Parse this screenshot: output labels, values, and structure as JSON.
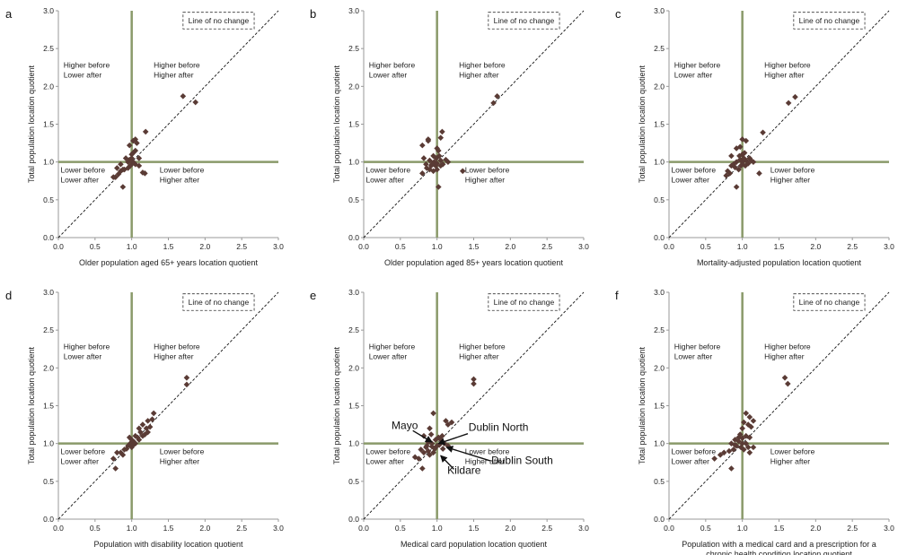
{
  "colors": {
    "marker": "#5a3b35",
    "reference_line": "#8a9a6a",
    "axis": "#999999",
    "diagonal": "#111111"
  },
  "chart_data": [
    {
      "type": "scatter",
      "panel": "a",
      "xlabel": "Older population aged 65+ years location quotient",
      "ylabel": "Total population location quotient",
      "xlim": [
        0,
        3
      ],
      "ylim": [
        0,
        3
      ],
      "xticks": [
        "0.0",
        "0.5",
        "1.0",
        "1.5",
        "2.0",
        "2.5",
        "3.0"
      ],
      "yticks": [
        "0.0",
        "0.5",
        "1.0",
        "1.5",
        "2.0",
        "2.5",
        "3.0"
      ],
      "legend": "Line of no change",
      "quadrant_labels": {
        "top_left": [
          "Higher before",
          "Lower after"
        ],
        "top_right": [
          "Higher before",
          "Higher after"
        ],
        "bottom_left": [
          "Lower before",
          "Lower after"
        ],
        "bottom_right": [
          "Lower before",
          "Higher after"
        ]
      },
      "annotations": [],
      "points": [
        [
          1.7,
          1.87
        ],
        [
          1.87,
          1.79
        ],
        [
          1.05,
          1.3
        ],
        [
          1.02,
          1.28
        ],
        [
          1.07,
          1.25
        ],
        [
          1.19,
          1.4
        ],
        [
          0.97,
          1.22
        ],
        [
          1.05,
          1.15
        ],
        [
          1.02,
          1.12
        ],
        [
          1.0,
          1.1
        ],
        [
          0.92,
          1.05
        ],
        [
          0.97,
          1.03
        ],
        [
          1.1,
          1.05
        ],
        [
          0.95,
          1.0
        ],
        [
          1.0,
          0.97
        ],
        [
          1.05,
          0.97
        ],
        [
          1.1,
          0.95
        ],
        [
          0.85,
          0.97
        ],
        [
          0.8,
          0.92
        ],
        [
          0.85,
          0.88
        ],
        [
          0.9,
          0.9
        ],
        [
          0.95,
          0.92
        ],
        [
          0.78,
          0.8
        ],
        [
          0.82,
          0.84
        ],
        [
          0.75,
          0.8
        ],
        [
          1.18,
          0.85
        ],
        [
          1.15,
          0.86
        ],
        [
          0.88,
          0.67
        ],
        [
          0.88,
          0.9
        ],
        [
          1.02,
          1.0
        ],
        [
          0.98,
          0.95
        ],
        [
          1.0,
          1.05
        ]
      ]
    },
    {
      "type": "scatter",
      "panel": "b",
      "xlabel": "Older population aged 85+ years location quotient",
      "ylabel": "Total population location quotient",
      "xlim": [
        0,
        3
      ],
      "ylim": [
        0,
        3
      ],
      "xticks": [
        "0.0",
        "0.5",
        "1.0",
        "1.5",
        "2.0",
        "2.5",
        "3.0"
      ],
      "yticks": [
        "0.0",
        "0.5",
        "1.0",
        "1.5",
        "2.0",
        "2.5",
        "3.0"
      ],
      "legend": "Line of no change",
      "quadrant_labels": {
        "top_left": [
          "Higher before",
          "Lower after"
        ],
        "top_right": [
          "Higher before",
          "Higher after"
        ],
        "bottom_left": [
          "Lower before",
          "Lower after"
        ],
        "bottom_right": [
          "Lower before",
          "Higher after"
        ]
      },
      "annotations": [],
      "points": [
        [
          1.82,
          1.87
        ],
        [
          1.77,
          1.78
        ],
        [
          1.07,
          1.4
        ],
        [
          1.05,
          1.32
        ],
        [
          0.88,
          1.3
        ],
        [
          0.88,
          1.28
        ],
        [
          0.8,
          1.22
        ],
        [
          1.0,
          1.18
        ],
        [
          1.02,
          1.15
        ],
        [
          0.95,
          1.08
        ],
        [
          0.82,
          1.05
        ],
        [
          0.9,
          1.02
        ],
        [
          1.05,
          1.02
        ],
        [
          1.12,
          1.03
        ],
        [
          0.85,
          0.97
        ],
        [
          0.92,
          0.95
        ],
        [
          0.98,
          0.95
        ],
        [
          1.05,
          0.95
        ],
        [
          0.9,
          0.9
        ],
        [
          0.95,
          0.88
        ],
        [
          1.0,
          0.9
        ],
        [
          0.8,
          0.85
        ],
        [
          1.35,
          0.88
        ],
        [
          1.02,
          0.67
        ],
        [
          1.15,
          1.0
        ],
        [
          1.08,
          0.97
        ],
        [
          0.96,
          1.0
        ],
        [
          1.0,
          0.98
        ],
        [
          0.93,
          0.97
        ],
        [
          0.99,
          1.05
        ],
        [
          1.03,
          1.08
        ],
        [
          0.86,
          0.92
        ]
      ]
    },
    {
      "type": "scatter",
      "panel": "c",
      "xlabel": "Mortality-adjusted population location quotient",
      "ylabel": "Total population location quotient",
      "xlim": [
        0,
        3
      ],
      "ylim": [
        0,
        3
      ],
      "xticks": [
        "0.0",
        "0.5",
        "1.0",
        "1.5",
        "2.0",
        "2.5",
        "3.0"
      ],
      "yticks": [
        "0.0",
        "0.5",
        "1.0",
        "1.5",
        "2.0",
        "2.5",
        "3.0"
      ],
      "legend": "Line of no change",
      "quadrant_labels": {
        "top_left": [
          "Higher before",
          "Lower after"
        ],
        "top_right": [
          "Higher before",
          "Higher after"
        ],
        "bottom_left": [
          "Lower before",
          "Lower after"
        ],
        "bottom_right": [
          "Lower before",
          "Higher after"
        ]
      },
      "annotations": [],
      "points": [
        [
          1.72,
          1.86
        ],
        [
          1.63,
          1.78
        ],
        [
          1.28,
          1.39
        ],
        [
          1.0,
          1.3
        ],
        [
          1.05,
          1.28
        ],
        [
          0.97,
          1.2
        ],
        [
          0.92,
          1.18
        ],
        [
          1.0,
          1.1
        ],
        [
          1.03,
          1.12
        ],
        [
          0.85,
          1.08
        ],
        [
          0.97,
          1.03
        ],
        [
          1.05,
          1.02
        ],
        [
          1.1,
          1.05
        ],
        [
          0.92,
          1.0
        ],
        [
          1.0,
          0.97
        ],
        [
          1.08,
          0.98
        ],
        [
          0.85,
          0.95
        ],
        [
          0.9,
          0.93
        ],
        [
          0.95,
          0.9
        ],
        [
          0.8,
          0.88
        ],
        [
          0.78,
          0.82
        ],
        [
          0.83,
          0.85
        ],
        [
          1.23,
          0.85
        ],
        [
          0.92,
          0.67
        ],
        [
          1.0,
          1.0
        ],
        [
          1.02,
          1.05
        ],
        [
          0.98,
          0.95
        ],
        [
          1.12,
          1.02
        ],
        [
          1.15,
          1.0
        ],
        [
          0.96,
          1.08
        ],
        [
          1.04,
          0.95
        ],
        [
          0.88,
          0.97
        ]
      ]
    },
    {
      "type": "scatter",
      "panel": "d",
      "xlabel": "Population with disability location quotient",
      "ylabel": "Total population location quotient",
      "xlim": [
        0,
        3
      ],
      "ylim": [
        0,
        3
      ],
      "xticks": [
        "0.0",
        "0.5",
        "1.0",
        "1.5",
        "2.0",
        "2.5",
        "3.0"
      ],
      "yticks": [
        "0.0",
        "0.5",
        "1.0",
        "1.5",
        "2.0",
        "2.5",
        "3.0"
      ],
      "legend": "Line of no change",
      "quadrant_labels": {
        "top_left": [
          "Higher before",
          "Lower after"
        ],
        "top_right": [
          "Higher before",
          "Higher after"
        ],
        "bottom_left": [
          "Lower before",
          "Lower after"
        ],
        "bottom_right": [
          "Lower before",
          "Higher after"
        ]
      },
      "annotations": [],
      "points": [
        [
          1.75,
          1.87
        ],
        [
          1.75,
          1.78
        ],
        [
          1.3,
          1.4
        ],
        [
          1.28,
          1.32
        ],
        [
          1.22,
          1.3
        ],
        [
          1.15,
          1.25
        ],
        [
          1.1,
          1.2
        ],
        [
          1.25,
          1.22
        ],
        [
          1.12,
          1.15
        ],
        [
          1.18,
          1.12
        ],
        [
          1.05,
          1.1
        ],
        [
          1.08,
          1.08
        ],
        [
          1.22,
          1.15
        ],
        [
          1.0,
          1.05
        ],
        [
          1.03,
          1.02
        ],
        [
          0.98,
          1.0
        ],
        [
          1.1,
          1.05
        ],
        [
          0.95,
          0.97
        ],
        [
          1.0,
          0.95
        ],
        [
          0.9,
          0.92
        ],
        [
          0.85,
          0.88
        ],
        [
          0.88,
          0.85
        ],
        [
          0.8,
          0.88
        ],
        [
          0.75,
          0.8
        ],
        [
          0.78,
          0.67
        ],
        [
          1.05,
          1.0
        ],
        [
          1.0,
          1.02
        ],
        [
          1.15,
          1.1
        ],
        [
          1.2,
          1.2
        ],
        [
          0.93,
          0.93
        ],
        [
          1.02,
          0.98
        ],
        [
          0.97,
          1.08
        ]
      ]
    },
    {
      "type": "scatter",
      "panel": "e",
      "xlabel": "Medical card population location quotient",
      "ylabel": "Total population location quotient",
      "xlim": [
        0,
        3
      ],
      "ylim": [
        0,
        3
      ],
      "xticks": [
        "0.0",
        "0.5",
        "1.0",
        "1.5",
        "2.0",
        "2.5",
        "3.0"
      ],
      "yticks": [
        "0.0",
        "0.5",
        "1.0",
        "1.5",
        "2.0",
        "2.5",
        "3.0"
      ],
      "legend": "Line of no change",
      "quadrant_labels": {
        "top_left": [
          "Higher before",
          "Lower after"
        ],
        "top_right": [
          "Higher before",
          "Higher after"
        ],
        "bottom_left": [
          "Lower before",
          "Lower after"
        ],
        "bottom_right": [
          "Lower before",
          "Higher after"
        ]
      },
      "annotations": [
        {
          "text": "Mayo",
          "label_at": [
            0.38,
            1.19
          ],
          "arrow_from": [
            0.67,
            1.17
          ],
          "arrow_to": [
            0.93,
            1.02
          ],
          "anchor": "start"
        },
        {
          "text": "Dublin North",
          "label_at": [
            1.43,
            1.17
          ],
          "arrow_from": [
            1.42,
            1.13
          ],
          "arrow_to": [
            1.02,
            1.0
          ],
          "anchor": "start"
        },
        {
          "text": "Dublin South",
          "label_at": [
            1.74,
            0.73
          ],
          "arrow_from": [
            1.73,
            0.77
          ],
          "arrow_to": [
            1.13,
            0.95
          ],
          "anchor": "start"
        },
        {
          "text": "Kildare",
          "label_at": [
            1.14,
            0.6
          ],
          "arrow_from": [
            1.23,
            0.66
          ],
          "arrow_to": [
            1.05,
            0.84
          ],
          "anchor": "start"
        }
      ],
      "points": [
        [
          1.5,
          1.85
        ],
        [
          1.5,
          1.79
        ],
        [
          0.95,
          1.4
        ],
        [
          1.12,
          1.3
        ],
        [
          1.2,
          1.28
        ],
        [
          1.15,
          1.25
        ],
        [
          0.9,
          1.2
        ],
        [
          0.82,
          1.1
        ],
        [
          0.92,
          1.12
        ],
        [
          0.98,
          1.05
        ],
        [
          1.05,
          1.05
        ],
        [
          0.88,
          1.02
        ],
        [
          0.93,
          1.0
        ],
        [
          1.0,
          0.97
        ],
        [
          1.1,
          1.0
        ],
        [
          0.85,
          0.95
        ],
        [
          1.08,
          0.93
        ],
        [
          0.78,
          0.92
        ],
        [
          0.82,
          0.88
        ],
        [
          0.88,
          0.9
        ],
        [
          0.95,
          0.88
        ],
        [
          0.7,
          0.82
        ],
        [
          0.75,
          0.8
        ],
        [
          0.8,
          0.67
        ],
        [
          0.9,
          0.85
        ],
        [
          1.03,
          0.98
        ],
        [
          0.97,
          0.93
        ],
        [
          1.15,
          0.97
        ],
        [
          1.02,
          1.08
        ],
        [
          0.86,
          0.97
        ],
        [
          1.07,
          1.1
        ],
        [
          0.93,
          0.96
        ]
      ]
    },
    {
      "type": "scatter",
      "panel": "f",
      "xlabel": "Population with  a medical card and a prescription for a chronic health condition location quotient",
      "xlabel_lines": [
        "Population with  a medical card and a prescription for a",
        "chronic health condition location quotient"
      ],
      "ylabel": "Total population location quotient",
      "xlim": [
        0,
        3
      ],
      "ylim": [
        0,
        3
      ],
      "xticks": [
        "0.0",
        "0.5",
        "1.0",
        "1.5",
        "2.0",
        "2.5",
        "3.0"
      ],
      "yticks": [
        "0.0",
        "0.5",
        "1.0",
        "1.5",
        "2.0",
        "2.5",
        "3.0"
      ],
      "legend": "Line of no change",
      "quadrant_labels": {
        "top_left": [
          "Higher before",
          "Lower after"
        ],
        "top_right": [
          "Higher before",
          "Higher after"
        ],
        "bottom_left": [
          "Lower before",
          "Lower after"
        ],
        "bottom_right": [
          "Lower before",
          "Higher after"
        ]
      },
      "annotations": [],
      "points": [
        [
          1.58,
          1.87
        ],
        [
          1.62,
          1.79
        ],
        [
          1.05,
          1.4
        ],
        [
          1.1,
          1.35
        ],
        [
          1.15,
          1.3
        ],
        [
          1.02,
          1.28
        ],
        [
          1.08,
          1.25
        ],
        [
          1.0,
          1.2
        ],
        [
          1.12,
          1.22
        ],
        [
          0.97,
          1.12
        ],
        [
          1.05,
          1.1
        ],
        [
          1.1,
          1.08
        ],
        [
          0.9,
          1.05
        ],
        [
          0.95,
          1.03
        ],
        [
          1.0,
          1.0
        ],
        [
          0.85,
          1.0
        ],
        [
          0.92,
          0.97
        ],
        [
          0.98,
          0.95
        ],
        [
          1.08,
          0.95
        ],
        [
          0.88,
          0.92
        ],
        [
          0.82,
          0.9
        ],
        [
          0.75,
          0.88
        ],
        [
          0.7,
          0.85
        ],
        [
          0.62,
          0.8
        ],
        [
          1.15,
          0.95
        ],
        [
          1.1,
          0.88
        ],
        [
          0.85,
          0.67
        ],
        [
          1.02,
          0.92
        ],
        [
          0.95,
          1.08
        ],
        [
          1.05,
          1.0
        ],
        [
          0.9,
          0.98
        ],
        [
          1.0,
          1.07
        ]
      ]
    }
  ]
}
